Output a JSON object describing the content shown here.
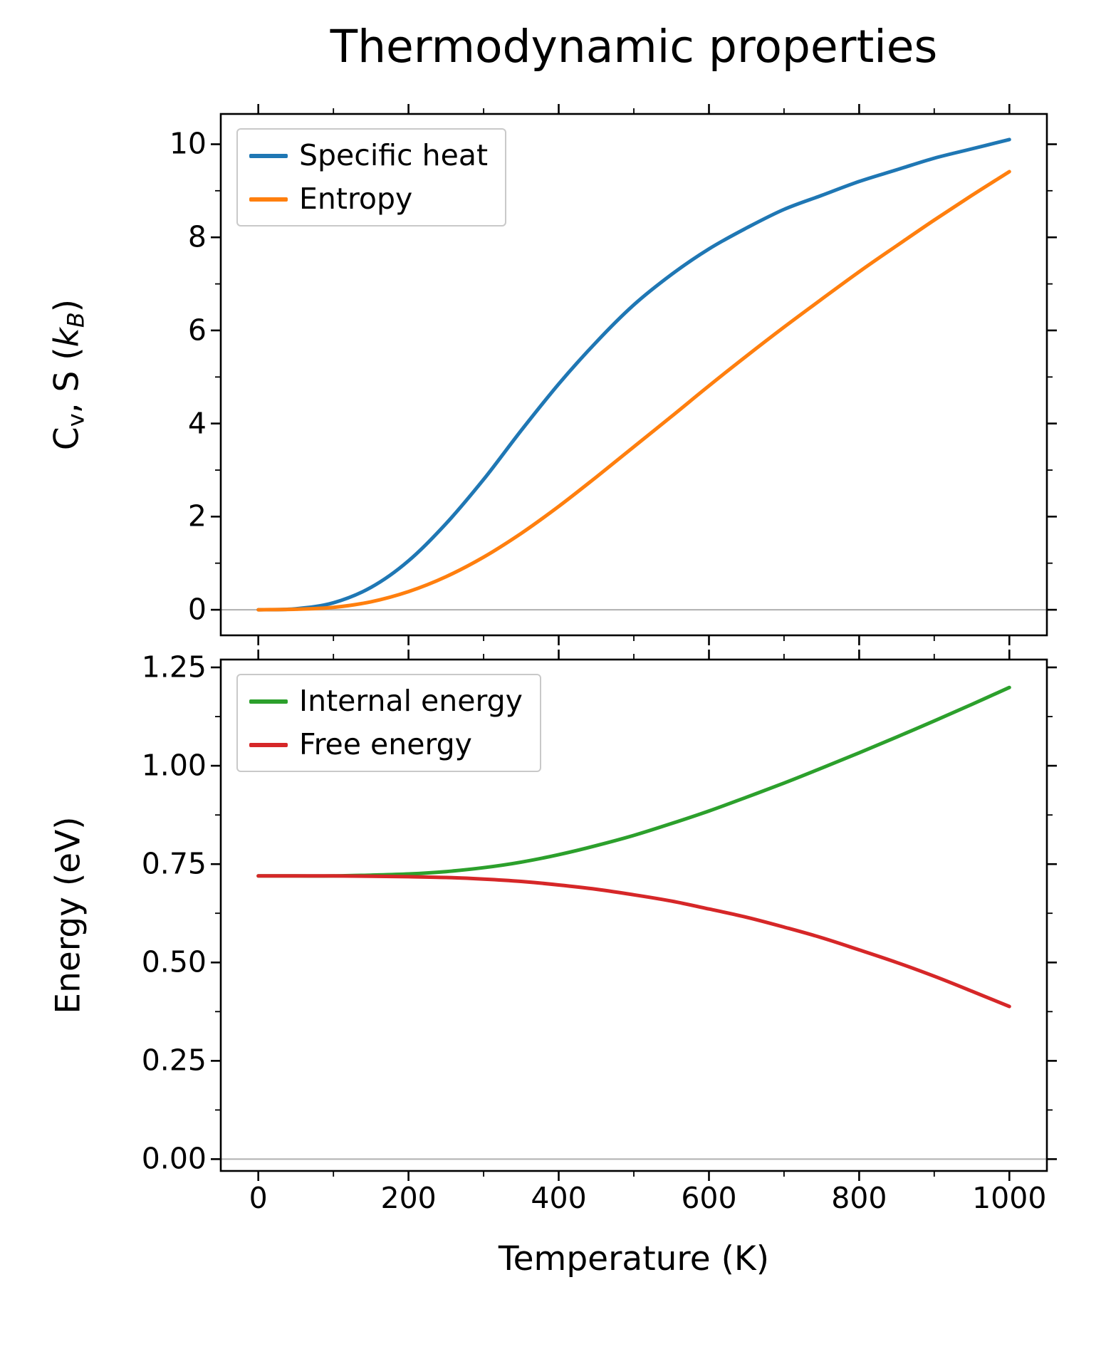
{
  "title": "Thermodynamic properties",
  "zero_line_color": "#b0b0b0",
  "axis_color": "#000000",
  "chart_data": [
    {
      "type": "line",
      "title": "",
      "xlabel": "",
      "ylabel": "Cv, S (kB)",
      "ylabel_parts": [
        {
          "t": "C"
        },
        {
          "t": "v",
          "sub": true
        },
        {
          "t": ", S ("
        },
        {
          "t": "k",
          "italic": true
        },
        {
          "t": "B",
          "sub": true,
          "italic": true
        },
        {
          "t": ")"
        }
      ],
      "x": [
        0,
        50,
        100,
        150,
        200,
        250,
        300,
        350,
        400,
        450,
        500,
        550,
        600,
        650,
        700,
        750,
        800,
        850,
        900,
        950,
        1000
      ],
      "series": [
        {
          "name": "Specific heat",
          "color": "#1f77b4",
          "values": [
            0,
            0.02,
            0.15,
            0.48,
            1.05,
            1.85,
            2.8,
            3.85,
            4.85,
            5.75,
            6.55,
            7.2,
            7.75,
            8.2,
            8.6,
            8.9,
            9.2,
            9.45,
            9.7,
            9.9,
            10.1
          ]
        },
        {
          "name": "Entropy",
          "color": "#ff7f0e",
          "values": [
            0,
            0.01,
            0.05,
            0.17,
            0.39,
            0.71,
            1.13,
            1.64,
            2.22,
            2.85,
            3.5,
            4.15,
            4.81,
            5.45,
            6.07,
            6.67,
            7.26,
            7.82,
            8.37,
            8.9,
            9.41
          ]
        }
      ],
      "xlim": [
        -50,
        1050
      ],
      "ylim": [
        -0.55,
        10.65
      ],
      "xticks": [
        0,
        200,
        400,
        600,
        800,
        1000
      ],
      "xticklabels": [
        "0",
        "200",
        "400",
        "600",
        "800",
        "1000"
      ],
      "show_xticklabels": false,
      "xminorticks": [
        100,
        300,
        500,
        700,
        900
      ],
      "yticks": [
        0,
        2,
        4,
        6,
        8,
        10
      ],
      "yticklabels": [
        "0",
        "2",
        "4",
        "6",
        "8",
        "10"
      ],
      "yminorticks": [
        1,
        3,
        5,
        7,
        9
      ],
      "zero_line": 0,
      "legend_loc": "upper left",
      "grid": false
    },
    {
      "type": "line",
      "title": "",
      "xlabel": "Temperature (K)",
      "ylabel": "Energy (eV)",
      "ylabel_parts": [
        {
          "t": "Energy (eV)"
        }
      ],
      "x": [
        0,
        50,
        100,
        150,
        200,
        250,
        300,
        350,
        400,
        450,
        500,
        550,
        600,
        650,
        700,
        750,
        800,
        850,
        900,
        950,
        1000
      ],
      "series": [
        {
          "name": "Internal energy",
          "color": "#2ca02c",
          "values": [
            0.72,
            0.72,
            0.72,
            0.722,
            0.725,
            0.731,
            0.741,
            0.755,
            0.774,
            0.797,
            0.823,
            0.853,
            0.885,
            0.92,
            0.956,
            0.994,
            1.033,
            1.073,
            1.114,
            1.156,
            1.199
          ]
        },
        {
          "name": "Free energy",
          "color": "#d62728",
          "values": [
            0.72,
            0.72,
            0.72,
            0.719,
            0.718,
            0.716,
            0.712,
            0.706,
            0.697,
            0.686,
            0.672,
            0.656,
            0.636,
            0.615,
            0.59,
            0.563,
            0.532,
            0.5,
            0.465,
            0.427,
            0.388
          ]
        }
      ],
      "xlim": [
        -50,
        1050
      ],
      "ylim": [
        -0.03,
        1.27
      ],
      "xticks": [
        0,
        200,
        400,
        600,
        800,
        1000
      ],
      "xticklabels": [
        "0",
        "200",
        "400",
        "600",
        "800",
        "1000"
      ],
      "show_xticklabels": true,
      "xminorticks": [
        100,
        300,
        500,
        700,
        900
      ],
      "yticks": [
        0,
        0.25,
        0.5,
        0.75,
        1.0,
        1.25
      ],
      "yticklabels": [
        "0.00",
        "0.25",
        "0.50",
        "0.75",
        "1.00",
        "1.25"
      ],
      "yminorticks": [
        0.125,
        0.375,
        0.625,
        0.875,
        1.125
      ],
      "zero_line": 0,
      "legend_loc": "upper left",
      "grid": false
    }
  ]
}
